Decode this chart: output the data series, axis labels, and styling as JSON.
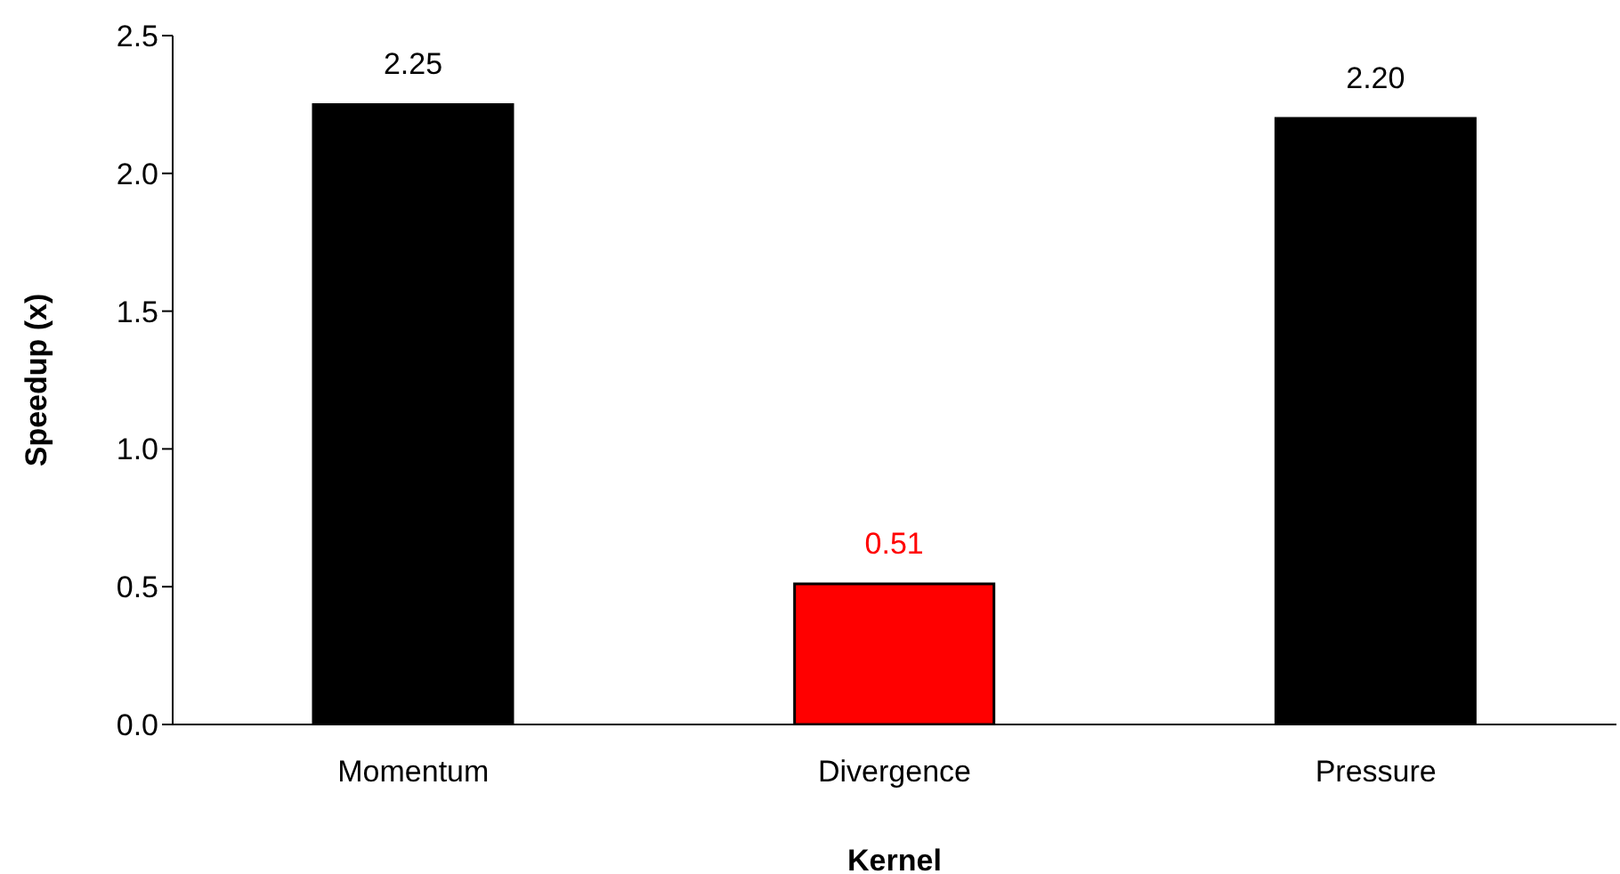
{
  "chart_data": {
    "type": "bar",
    "xlabel": "Kernel",
    "ylabel": "Speedup (x)",
    "categories": [
      "Momentum",
      "Divergence",
      "Pressure"
    ],
    "values": [
      2.25,
      0.51,
      2.2
    ],
    "colors": [
      "#000000",
      "#ff0000",
      "#000000"
    ],
    "value_labels": [
      "2.25",
      "0.51",
      "2.20"
    ],
    "ylim": [
      0,
      2.5
    ],
    "yticks": [
      {
        "value": 0,
        "label": "0.0"
      },
      {
        "value": 0.5,
        "label": "0.5"
      },
      {
        "value": 1,
        "label": "1.0"
      },
      {
        "value": 1.5,
        "label": "1.5"
      },
      {
        "value": 2,
        "label": "2.0"
      },
      {
        "value": 2.5,
        "label": "2.5"
      }
    ],
    "grid": false,
    "legend": false
  }
}
